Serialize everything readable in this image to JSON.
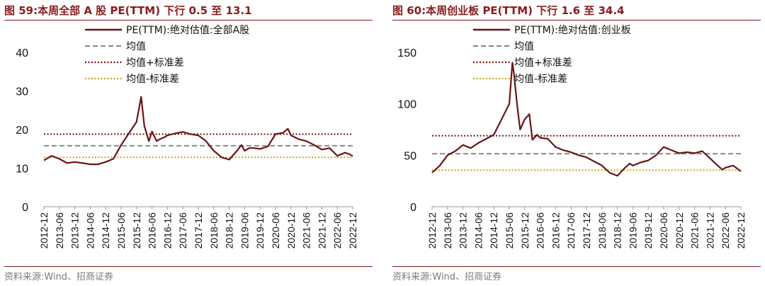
{
  "chart_data": [
    {
      "type": "line",
      "title": "图 59:本周全部 A 股 PE(TTM) 下行 0.5 至 13.1",
      "source": "资料来源:Wind、招商证券",
      "ylim": [
        0,
        40
      ],
      "yticks": [
        0,
        10,
        20,
        30,
        40
      ],
      "xlabels": [
        "2012-12",
        "2013-06",
        "2013-12",
        "2014-06",
        "2014-12",
        "2015-06",
        "2015-12",
        "2016-06",
        "2016-12",
        "2017-06",
        "2017-12",
        "2018-06",
        "2018-12",
        "2019-06",
        "2019-12",
        "2020-06",
        "2020-12",
        "2021-06",
        "2021-12",
        "2022-06",
        "2022-12"
      ],
      "legend_position": "top",
      "grid": false,
      "series": [
        {
          "name": "PE(TTM):绝对估值:全部A股",
          "color": "#6b1414",
          "style": "solid",
          "x": [
            0,
            0.5,
            1,
            1.5,
            2,
            2.5,
            3,
            3.5,
            4,
            4.5,
            5,
            5.5,
            6,
            6.3,
            6.5,
            6.8,
            7,
            7.3,
            7.5,
            7.8,
            8,
            8.5,
            9,
            9.5,
            10,
            10.5,
            11,
            11.5,
            12,
            12.5,
            12.8,
            13,
            13.3,
            13.6,
            14,
            14.5,
            15,
            15.5,
            15.8,
            16,
            16.5,
            17,
            17.5,
            18,
            18.5,
            19,
            19.5,
            19.8,
            20
          ],
          "values": [
            12.0,
            13.2,
            12.4,
            11.3,
            11.6,
            11.3,
            11.0,
            11.0,
            11.6,
            12.4,
            16.0,
            19.0,
            22.0,
            28.5,
            21.0,
            17.0,
            19.5,
            17.0,
            17.5,
            18.0,
            18.5,
            19.0,
            19.4,
            18.8,
            18.5,
            17.0,
            14.5,
            12.8,
            12.2,
            14.5,
            16.0,
            14.5,
            15.2,
            15.2,
            15.0,
            15.6,
            18.8,
            19.2,
            20.2,
            18.5,
            17.5,
            17.0,
            16.0,
            14.8,
            15.2,
            13.2,
            14.0,
            13.6,
            13.1
          ]
        },
        {
          "name": "均值",
          "color": "#8c8c8c",
          "style": "dashed",
          "value": 15.8
        },
        {
          "name": "均值+标准差",
          "color": "#7a1111",
          "style": "dotted",
          "value": 18.8
        },
        {
          "name": "均值-标准差",
          "color": "#c9a227",
          "style": "dotted",
          "value": 12.8
        }
      ]
    },
    {
      "type": "line",
      "title": "图 60:本周创业板 PE(TTM) 下行 1.6 至 34.4",
      "source": "资料来源:Wind、招商证券",
      "ylim": [
        0,
        150
      ],
      "yticks": [
        0,
        50,
        100,
        150
      ],
      "xlabels": [
        "2012-12",
        "2013-06",
        "2013-12",
        "2014-06",
        "2014-12",
        "2015-06",
        "2015-12",
        "2016-06",
        "2016-12",
        "2017-06",
        "2017-12",
        "2018-06",
        "2018-12",
        "2019-06",
        "2019-12",
        "2020-06",
        "2020-12",
        "2021-06",
        "2021-12",
        "2022-06",
        "2022-12"
      ],
      "legend_position": "top",
      "grid": false,
      "series": [
        {
          "name": "PE(TTM):绝对估值:创业板",
          "color": "#6b1414",
          "style": "solid",
          "x": [
            0,
            0.5,
            1,
            1.5,
            2,
            2.5,
            3,
            3.5,
            4,
            4.5,
            5,
            5.2,
            5.3,
            5.5,
            5.7,
            6,
            6.3,
            6.5,
            6.8,
            7,
            7.5,
            8,
            8.5,
            9,
            9.5,
            10,
            10.5,
            11,
            11.5,
            12,
            12.5,
            12.8,
            13,
            13.5,
            14,
            14.5,
            14.8,
            15,
            15.5,
            16,
            16.5,
            17,
            17.5,
            18,
            18.5,
            18.8,
            19,
            19.5,
            20
          ],
          "values": [
            33,
            40,
            50,
            54,
            60,
            57,
            62,
            66,
            70,
            85,
            100,
            140,
            130,
            100,
            75,
            85,
            90,
            65,
            70,
            67,
            66,
            58,
            55,
            53,
            50,
            48,
            44,
            40,
            33,
            30,
            38,
            42,
            40,
            43,
            45,
            50,
            55,
            58,
            55,
            52,
            53,
            52,
            54,
            47,
            40,
            36,
            38,
            40,
            34.4
          ]
        },
        {
          "name": "均值",
          "color": "#8c8c8c",
          "style": "dashed",
          "value": 51.5
        },
        {
          "name": "均值+标准差",
          "color": "#7a1111",
          "style": "dotted",
          "value": 69
        },
        {
          "name": "均值-标准差",
          "color": "#c9a227",
          "style": "dotted",
          "value": 35.5
        }
      ]
    }
  ]
}
